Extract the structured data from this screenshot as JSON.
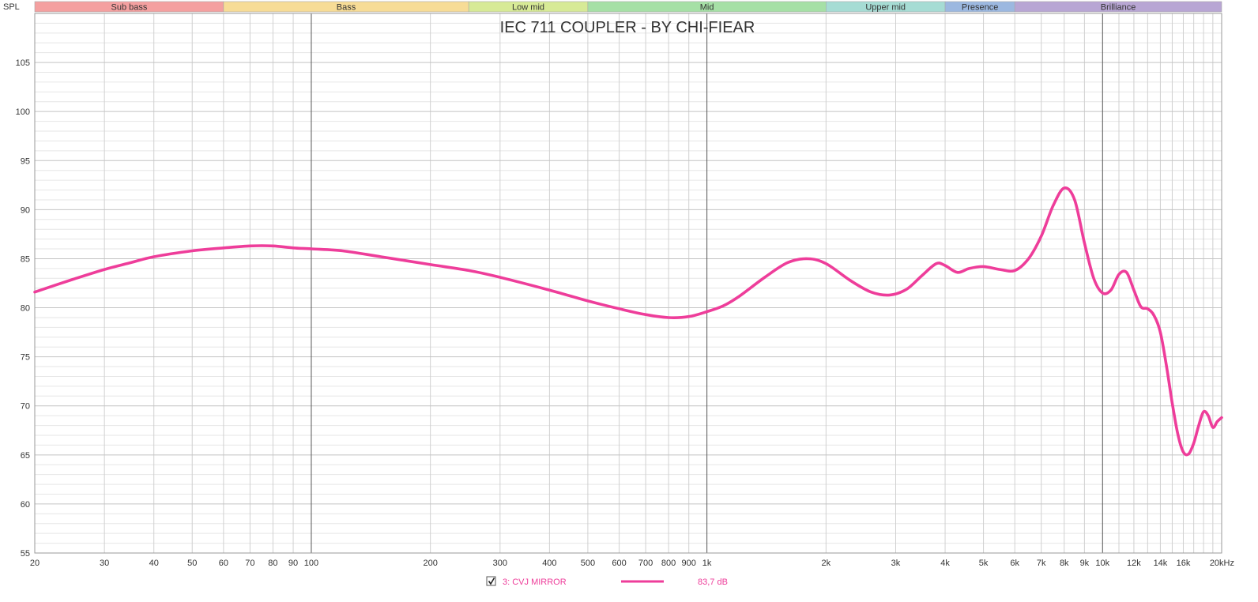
{
  "chart_data": {
    "type": "line",
    "title": "IEC 711 COUPLER - BY CHI-FIEAR",
    "ylabel": "SPL",
    "xunit": "kHz",
    "xscale": "log",
    "xlim": [
      20,
      20000
    ],
    "ylim": [
      55,
      110
    ],
    "grid": true,
    "y_ticks": [
      105,
      100,
      95,
      90,
      85,
      80,
      75,
      70,
      65,
      60,
      55
    ],
    "x_ticks": [
      {
        "value": 20,
        "label": "20"
      },
      {
        "value": 30,
        "label": "30"
      },
      {
        "value": 40,
        "label": "40"
      },
      {
        "value": 50,
        "label": "50"
      },
      {
        "value": 60,
        "label": "60"
      },
      {
        "value": 70,
        "label": "70"
      },
      {
        "value": 80,
        "label": "80"
      },
      {
        "value": 90,
        "label": "90"
      },
      {
        "value": 100,
        "label": "100"
      },
      {
        "value": 200,
        "label": "200"
      },
      {
        "value": 300,
        "label": "300"
      },
      {
        "value": 400,
        "label": "400"
      },
      {
        "value": 500,
        "label": "500"
      },
      {
        "value": 600,
        "label": "600"
      },
      {
        "value": 700,
        "label": "700"
      },
      {
        "value": 800,
        "label": "800"
      },
      {
        "value": 900,
        "label": "900"
      },
      {
        "value": 1000,
        "label": "1k"
      },
      {
        "value": 2000,
        "label": "2k"
      },
      {
        "value": 3000,
        "label": "3k"
      },
      {
        "value": 4000,
        "label": "4k"
      },
      {
        "value": 5000,
        "label": "5k"
      },
      {
        "value": 6000,
        "label": "6k"
      },
      {
        "value": 7000,
        "label": "7k"
      },
      {
        "value": 8000,
        "label": "8k"
      },
      {
        "value": 9000,
        "label": "9k"
      },
      {
        "value": 10000,
        "label": "10k"
      },
      {
        "value": 12000,
        "label": "12k"
      },
      {
        "value": 14000,
        "label": "14k"
      },
      {
        "value": 16000,
        "label": "16k"
      },
      {
        "value": 20000,
        "label": "20kHz"
      }
    ],
    "bands": [
      {
        "name": "Sub bass",
        "from": 20,
        "to": 60,
        "color": "#f4a0a0"
      },
      {
        "name": "Bass",
        "from": 60,
        "to": 250,
        "color": "#f7dc96"
      },
      {
        "name": "Low mid",
        "from": 250,
        "to": 500,
        "color": "#d7ea96"
      },
      {
        "name": "Mid",
        "from": 500,
        "to": 2000,
        "color": "#a6e0a6"
      },
      {
        "name": "Upper mid",
        "from": 2000,
        "to": 4000,
        "color": "#a6dcd4"
      },
      {
        "name": "Presence",
        "from": 4000,
        "to": 6000,
        "color": "#9cb8e0"
      },
      {
        "name": "Brilliance",
        "from": 6000,
        "to": 20000,
        "color": "#b8a6d4"
      }
    ],
    "series": [
      {
        "name": "3: CVJ MIRROR",
        "color": "#ee3d9a",
        "legend_value": "83,7 dB",
        "points": [
          [
            20,
            81.6
          ],
          [
            25,
            82.9
          ],
          [
            30,
            83.9
          ],
          [
            35,
            84.6
          ],
          [
            40,
            85.2
          ],
          [
            50,
            85.8
          ],
          [
            60,
            86.1
          ],
          [
            70,
            86.3
          ],
          [
            80,
            86.3
          ],
          [
            90,
            86.1
          ],
          [
            100,
            86.0
          ],
          [
            120,
            85.8
          ],
          [
            150,
            85.2
          ],
          [
            200,
            84.4
          ],
          [
            250,
            83.8
          ],
          [
            300,
            83.1
          ],
          [
            400,
            81.8
          ],
          [
            500,
            80.7
          ],
          [
            600,
            79.9
          ],
          [
            700,
            79.3
          ],
          [
            800,
            79.0
          ],
          [
            900,
            79.1
          ],
          [
            1000,
            79.6
          ],
          [
            1100,
            80.2
          ],
          [
            1200,
            81.1
          ],
          [
            1400,
            83.1
          ],
          [
            1600,
            84.6
          ],
          [
            1800,
            85.0
          ],
          [
            2000,
            84.5
          ],
          [
            2300,
            82.8
          ],
          [
            2600,
            81.6
          ],
          [
            2900,
            81.3
          ],
          [
            3200,
            81.9
          ],
          [
            3500,
            83.3
          ],
          [
            3800,
            84.5
          ],
          [
            4000,
            84.3
          ],
          [
            4300,
            83.6
          ],
          [
            4600,
            84.0
          ],
          [
            5000,
            84.2
          ],
          [
            5500,
            83.9
          ],
          [
            6000,
            83.8
          ],
          [
            6500,
            85.0
          ],
          [
            7000,
            87.3
          ],
          [
            7500,
            90.4
          ],
          [
            8000,
            92.2
          ],
          [
            8500,
            91.0
          ],
          [
            9000,
            86.6
          ],
          [
            9500,
            83.0
          ],
          [
            10000,
            81.5
          ],
          [
            10500,
            81.8
          ],
          [
            11000,
            83.4
          ],
          [
            11500,
            83.6
          ],
          [
            12000,
            81.8
          ],
          [
            12500,
            80.1
          ],
          [
            13000,
            79.9
          ],
          [
            13500,
            79.2
          ],
          [
            14000,
            77.5
          ],
          [
            14500,
            74.1
          ],
          [
            15000,
            70.3
          ],
          [
            15500,
            67.1
          ],
          [
            16000,
            65.3
          ],
          [
            16500,
            65.1
          ],
          [
            17000,
            66.2
          ],
          [
            17500,
            68.0
          ],
          [
            18000,
            69.4
          ],
          [
            18500,
            69.0
          ],
          [
            19000,
            67.8
          ],
          [
            19500,
            68.4
          ],
          [
            20000,
            68.8
          ]
        ]
      }
    ]
  }
}
